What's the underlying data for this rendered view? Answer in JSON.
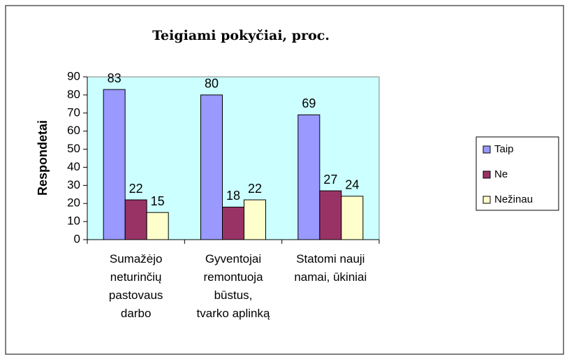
{
  "chart_data": {
    "type": "bar",
    "title": "Teigiami pokyčiai, proc.",
    "y_label": "Respondetai",
    "categories": [
      "Sumažėjo\nneturinčių\npastovaus\ndarbo",
      "Gyventojai\nremontuoja\nbūstus,\ntvarko aplinką",
      "Statomi nauji\nnamai, ūkiniai"
    ],
    "series": [
      {
        "name": "Taip",
        "color": "#9999ff",
        "values": [
          83,
          80,
          69
        ]
      },
      {
        "name": "Ne",
        "color": "#993366",
        "values": [
          22,
          18,
          27
        ]
      },
      {
        "name": "Nežinau",
        "color": "#ffffcc",
        "values": [
          15,
          22,
          24
        ]
      }
    ],
    "ylim": [
      0,
      90
    ],
    "yticks": [
      0,
      10,
      20,
      30,
      40,
      50,
      60,
      70,
      80,
      90
    ],
    "legend": "right",
    "plot_background": "#ccffff"
  }
}
